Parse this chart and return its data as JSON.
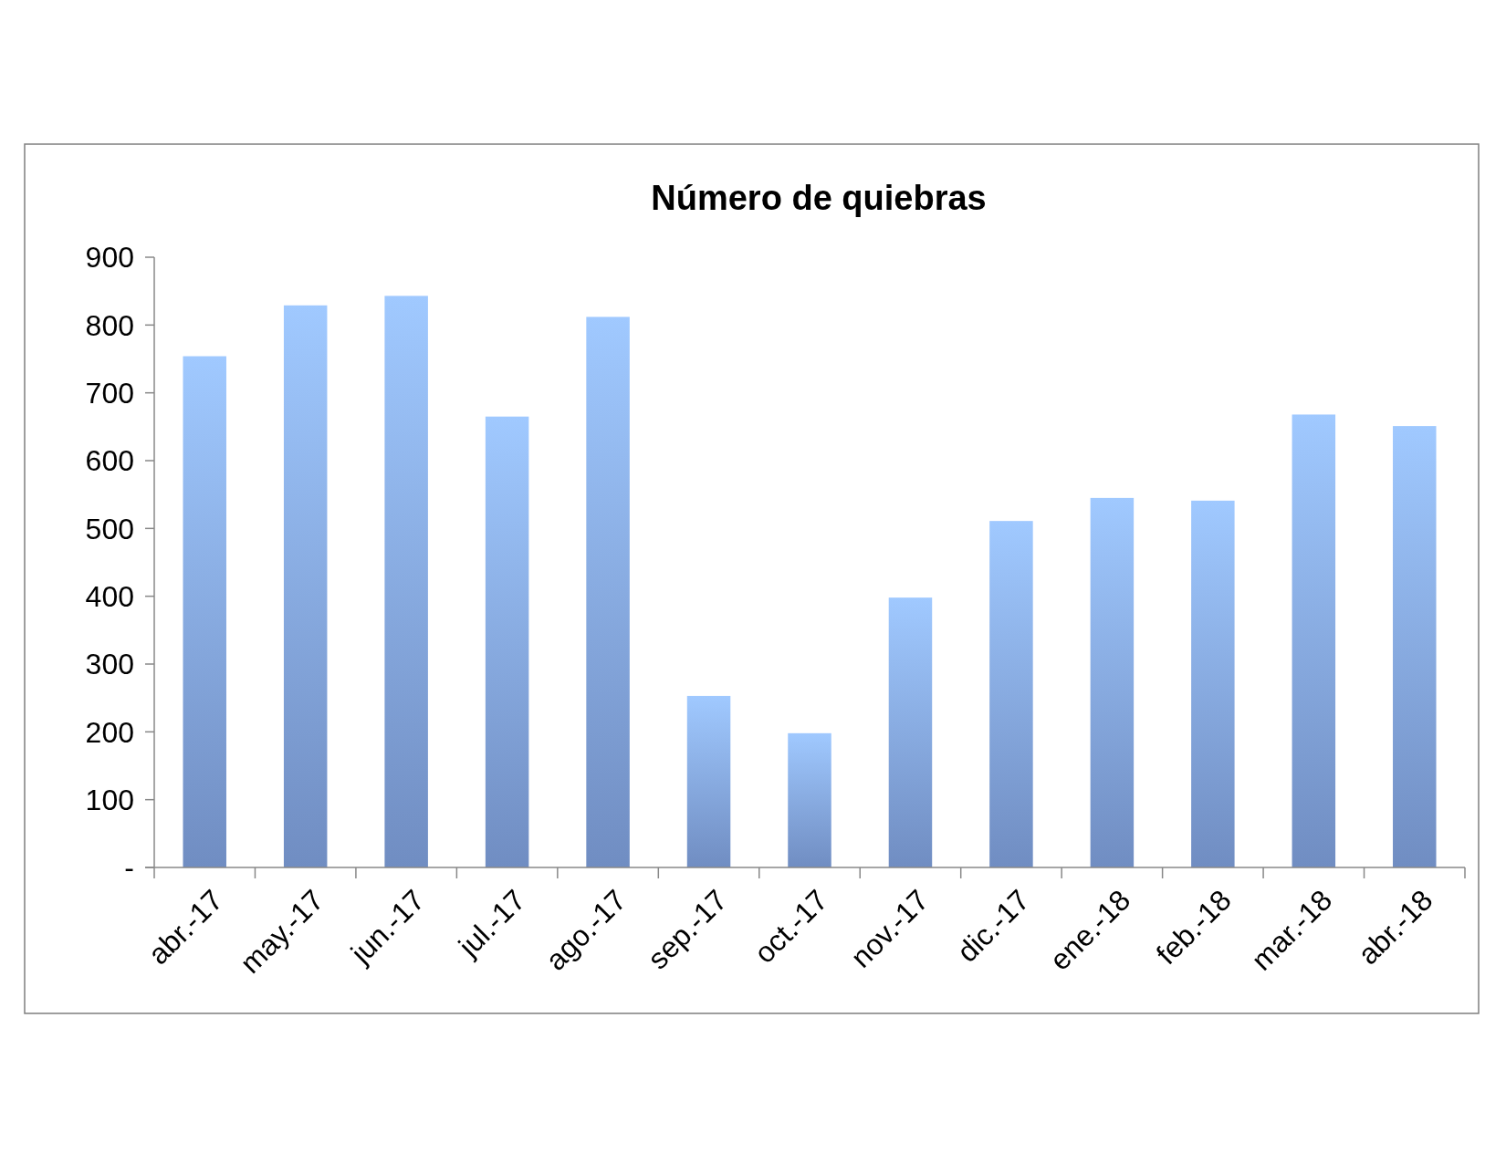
{
  "chart_data": {
    "type": "bar",
    "title": "Número de quiebras",
    "categories": [
      "abr.-17",
      "may.-17",
      "jun.-17",
      "jul.-17",
      "ago.-17",
      "sep.-17",
      "oct.-17",
      "nov.-17",
      "dic.-17",
      "ene.-18",
      "feb.-18",
      "mar.-18",
      "abr.-18"
    ],
    "values": [
      754,
      829,
      843,
      665,
      812,
      253,
      198,
      398,
      511,
      545,
      541,
      668,
      651
    ],
    "color": "#86a8e8",
    "ylim": [
      0,
      900
    ],
    "yticks": [
      {
        "value": 0,
        "label": "-"
      },
      100,
      200,
      300,
      400,
      500,
      600,
      700,
      800,
      900
    ],
    "grid": false
  }
}
